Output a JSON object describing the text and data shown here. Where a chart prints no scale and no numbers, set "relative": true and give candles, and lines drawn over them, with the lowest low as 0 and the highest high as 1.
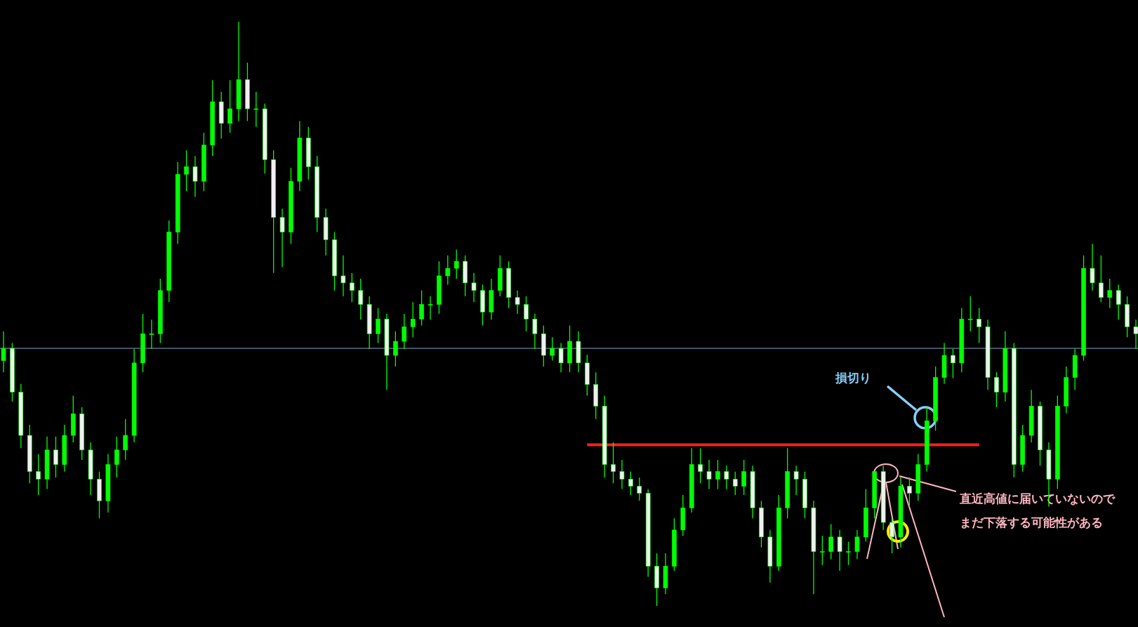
{
  "chart_data": {
    "type": "candlestick",
    "relative": true,
    "color": "#00ff00",
    "categories": [
      null,
      null,
      null,
      null,
      null,
      null,
      null,
      null,
      null,
      null,
      null,
      null,
      null,
      null,
      null,
      null,
      null,
      null,
      null,
      null,
      null,
      null,
      null,
      null,
      null,
      null,
      null,
      null,
      null,
      null,
      null,
      null,
      null,
      null,
      null,
      null,
      null,
      null,
      null,
      null,
      null,
      null,
      null,
      null,
      null,
      null,
      null,
      null,
      null,
      null,
      null,
      null,
      null,
      null,
      null,
      null,
      null,
      null,
      null,
      null,
      null,
      null,
      null,
      null,
      null,
      null,
      null,
      null,
      null,
      null,
      null,
      null,
      null,
      null,
      null,
      null,
      null,
      null,
      null,
      null,
      null,
      null,
      null,
      null,
      null,
      null,
      null,
      null,
      null,
      null,
      null,
      null,
      null,
      null,
      null,
      null,
      null,
      null,
      null,
      null,
      null,
      null,
      null,
      null,
      null,
      null,
      null,
      null,
      null,
      null,
      null,
      null,
      null,
      null,
      null,
      null,
      null,
      null,
      null,
      null,
      null,
      null,
      null,
      null,
      null,
      null,
      null,
      null,
      null,
      null,
      null
    ],
    "ohlc": [
      [
        0.42,
        0.47,
        0.4,
        0.441
      ],
      [
        0.441,
        0.45,
        0.35,
        0.366
      ],
      [
        0.366,
        0.38,
        0.27,
        0.292
      ],
      [
        0.292,
        0.31,
        0.21,
        0.23
      ],
      [
        0.23,
        0.26,
        0.19,
        0.217
      ],
      [
        0.217,
        0.29,
        0.2,
        0.267
      ],
      [
        0.267,
        0.29,
        0.22,
        0.242
      ],
      [
        0.242,
        0.31,
        0.23,
        0.292
      ],
      [
        0.292,
        0.36,
        0.28,
        0.329
      ],
      [
        0.329,
        0.34,
        0.25,
        0.267
      ],
      [
        0.267,
        0.28,
        0.19,
        0.217
      ],
      [
        0.217,
        0.23,
        0.15,
        0.18
      ],
      [
        0.18,
        0.26,
        0.16,
        0.242
      ],
      [
        0.242,
        0.29,
        0.22,
        0.267
      ],
      [
        0.267,
        0.32,
        0.25,
        0.292
      ],
      [
        0.292,
        0.44,
        0.28,
        0.416
      ],
      [
        0.416,
        0.5,
        0.4,
        0.466
      ],
      [
        0.466,
        0.49,
        0.44,
        0.466
      ],
      [
        0.466,
        0.56,
        0.45,
        0.54
      ],
      [
        0.54,
        0.66,
        0.52,
        0.64
      ],
      [
        0.64,
        0.76,
        0.62,
        0.739
      ],
      [
        0.739,
        0.78,
        0.71,
        0.752
      ],
      [
        0.752,
        0.77,
        0.7,
        0.727
      ],
      [
        0.727,
        0.81,
        0.71,
        0.789
      ],
      [
        0.789,
        0.9,
        0.77,
        0.863
      ],
      [
        0.863,
        0.88,
        0.8,
        0.826
      ],
      [
        0.826,
        0.9,
        0.81,
        0.851
      ],
      [
        0.851,
        1.0,
        0.83,
        0.901
      ],
      [
        0.901,
        0.93,
        0.83,
        0.851
      ],
      [
        0.851,
        0.88,
        0.82,
        0.851
      ],
      [
        0.851,
        0.86,
        0.74,
        0.764
      ],
      [
        0.764,
        0.78,
        0.57,
        0.665
      ],
      [
        0.665,
        0.68,
        0.58,
        0.64
      ],
      [
        0.64,
        0.75,
        0.62,
        0.727
      ],
      [
        0.727,
        0.83,
        0.71,
        0.801
      ],
      [
        0.801,
        0.82,
        0.73,
        0.752
      ],
      [
        0.752,
        0.77,
        0.64,
        0.665
      ],
      [
        0.665,
        0.68,
        0.6,
        0.627
      ],
      [
        0.627,
        0.64,
        0.54,
        0.565
      ],
      [
        0.565,
        0.6,
        0.53,
        0.553
      ],
      [
        0.553,
        0.57,
        0.52,
        0.54
      ],
      [
        0.54,
        0.56,
        0.49,
        0.516
      ],
      [
        0.516,
        0.53,
        0.44,
        0.466
      ],
      [
        0.466,
        0.51,
        0.45,
        0.491
      ],
      [
        0.491,
        0.5,
        0.37,
        0.429
      ],
      [
        0.429,
        0.47,
        0.41,
        0.453
      ],
      [
        0.453,
        0.5,
        0.44,
        0.478
      ],
      [
        0.478,
        0.52,
        0.46,
        0.491
      ],
      [
        0.491,
        0.54,
        0.48,
        0.516
      ],
      [
        0.516,
        0.53,
        0.49,
        0.516
      ],
      [
        0.516,
        0.59,
        0.5,
        0.565
      ],
      [
        0.565,
        0.6,
        0.55,
        0.578
      ],
      [
        0.578,
        0.61,
        0.56,
        0.59
      ],
      [
        0.59,
        0.6,
        0.53,
        0.553
      ],
      [
        0.553,
        0.57,
        0.52,
        0.54
      ],
      [
        0.54,
        0.55,
        0.48,
        0.503
      ],
      [
        0.503,
        0.56,
        0.49,
        0.54
      ],
      [
        0.54,
        0.6,
        0.53,
        0.578
      ],
      [
        0.578,
        0.59,
        0.51,
        0.528
      ],
      [
        0.528,
        0.54,
        0.5,
        0.516
      ],
      [
        0.516,
        0.53,
        0.47,
        0.491
      ],
      [
        0.491,
        0.5,
        0.44,
        0.466
      ],
      [
        0.466,
        0.48,
        0.41,
        0.429
      ],
      [
        0.429,
        0.46,
        0.42,
        0.441
      ],
      [
        0.441,
        0.45,
        0.4,
        0.416
      ],
      [
        0.416,
        0.48,
        0.4,
        0.453
      ],
      [
        0.453,
        0.47,
        0.4,
        0.416
      ],
      [
        0.416,
        0.43,
        0.36,
        0.379
      ],
      [
        0.379,
        0.4,
        0.32,
        0.342
      ],
      [
        0.342,
        0.36,
        0.22,
        0.242
      ],
      [
        0.242,
        0.28,
        0.21,
        0.23
      ],
      [
        0.23,
        0.25,
        0.2,
        0.217
      ],
      [
        0.217,
        0.23,
        0.19,
        0.205
      ],
      [
        0.205,
        0.22,
        0.18,
        0.193
      ],
      [
        0.193,
        0.2,
        0.05,
        0.068
      ],
      [
        0.068,
        0.09,
        0.0,
        0.031
      ],
      [
        0.031,
        0.09,
        0.02,
        0.068
      ],
      [
        0.068,
        0.15,
        0.06,
        0.13
      ],
      [
        0.13,
        0.19,
        0.12,
        0.168
      ],
      [
        0.168,
        0.27,
        0.16,
        0.242
      ],
      [
        0.242,
        0.27,
        0.21,
        0.23
      ],
      [
        0.23,
        0.25,
        0.2,
        0.217
      ],
      [
        0.217,
        0.25,
        0.2,
        0.23
      ],
      [
        0.23,
        0.24,
        0.2,
        0.217
      ],
      [
        0.217,
        0.23,
        0.19,
        0.205
      ],
      [
        0.205,
        0.25,
        0.19,
        0.23
      ],
      [
        0.23,
        0.24,
        0.15,
        0.168
      ],
      [
        0.168,
        0.18,
        0.1,
        0.118
      ],
      [
        0.118,
        0.13,
        0.04,
        0.068
      ],
      [
        0.068,
        0.19,
        0.06,
        0.168
      ],
      [
        0.168,
        0.27,
        0.15,
        0.23
      ],
      [
        0.23,
        0.24,
        0.19,
        0.217
      ],
      [
        0.217,
        0.23,
        0.15,
        0.168
      ],
      [
        0.168,
        0.18,
        0.02,
        0.093
      ],
      [
        0.093,
        0.12,
        0.07,
        0.093
      ],
      [
        0.093,
        0.14,
        0.08,
        0.118
      ],
      [
        0.118,
        0.13,
        0.06,
        0.093
      ],
      [
        0.093,
        0.11,
        0.07,
        0.093
      ],
      [
        0.093,
        0.13,
        0.08,
        0.118
      ],
      [
        0.118,
        0.2,
        0.11,
        0.168
      ],
      [
        0.168,
        0.23,
        0.15,
        0.23
      ],
      [
        0.23,
        0.24,
        0.13,
        0.143
      ],
      [
        0.143,
        0.15,
        0.09,
        0.118
      ],
      [
        0.118,
        0.22,
        0.1,
        0.205
      ],
      [
        0.205,
        0.22,
        0.17,
        0.193
      ],
      [
        0.193,
        0.26,
        0.18,
        0.242
      ],
      [
        0.242,
        0.34,
        0.23,
        0.317
      ],
      [
        0.317,
        0.41,
        0.3,
        0.391
      ],
      [
        0.391,
        0.45,
        0.38,
        0.429
      ],
      [
        0.429,
        0.44,
        0.39,
        0.416
      ],
      [
        0.416,
        0.51,
        0.4,
        0.491
      ],
      [
        0.491,
        0.53,
        0.47,
        0.491
      ],
      [
        0.491,
        0.51,
        0.45,
        0.478
      ],
      [
        0.478,
        0.49,
        0.37,
        0.391
      ],
      [
        0.391,
        0.4,
        0.34,
        0.366
      ],
      [
        0.366,
        0.47,
        0.35,
        0.441
      ],
      [
        0.441,
        0.45,
        0.22,
        0.242
      ],
      [
        0.242,
        0.31,
        0.23,
        0.292
      ],
      [
        0.292,
        0.37,
        0.28,
        0.342
      ],
      [
        0.342,
        0.35,
        0.24,
        0.267
      ],
      [
        0.267,
        0.28,
        0.17,
        0.217
      ],
      [
        0.217,
        0.36,
        0.2,
        0.342
      ],
      [
        0.342,
        0.41,
        0.33,
        0.391
      ],
      [
        0.391,
        0.44,
        0.37,
        0.429
      ],
      [
        0.429,
        0.6,
        0.42,
        0.578
      ],
      [
        0.578,
        0.62,
        0.54,
        0.553
      ],
      [
        0.553,
        0.6,
        0.52,
        0.528
      ],
      [
        0.528,
        0.56,
        0.51,
        0.54
      ],
      [
        0.54,
        0.55,
        0.49,
        0.516
      ],
      [
        0.516,
        0.53,
        0.46,
        0.478
      ],
      [
        0.478,
        0.49,
        0.44,
        0.466
      ]
    ],
    "series": [
      {
        "type": "line",
        "color": "#ff2020",
        "values": [
          null,
          null,
          null,
          null,
          null,
          null,
          null,
          null,
          null,
          null,
          null,
          null,
          null,
          null,
          null,
          null,
          null,
          null,
          null,
          null,
          null,
          null,
          null,
          null,
          null,
          null,
          null,
          null,
          null,
          null,
          null,
          null,
          null,
          null,
          null,
          null,
          null,
          null,
          null,
          null,
          null,
          null,
          null,
          null,
          null,
          null,
          null,
          null,
          null,
          null,
          null,
          null,
          null,
          null,
          null,
          null,
          null,
          null,
          null,
          null,
          null,
          null,
          null,
          null,
          null,
          null,
          null,
          0.276,
          0.276,
          0.276,
          0.276,
          0.276,
          0.276,
          0.276,
          0.276,
          0.276,
          0.276,
          0.276,
          0.276,
          0.276,
          0.276,
          0.276,
          0.276,
          0.276,
          0.276,
          0.276,
          0.276,
          0.276,
          0.276,
          0.276,
          0.276,
          0.276,
          0.276,
          0.276,
          0.276,
          0.276,
          0.276,
          0.276,
          0.276,
          0.276,
          0.276,
          0.276,
          0.276,
          0.276,
          0.276,
          0.276,
          0.276,
          0.276,
          0.276,
          0.276,
          0.276,
          0.276,
          0.276,
          null,
          null,
          null,
          null,
          null,
          null,
          null,
          null,
          null,
          null,
          null,
          null,
          null,
          null,
          null,
          null,
          null,
          null
        ]
      }
    ],
    "ref_lines": [
      {
        "axis": "y",
        "value": 0.441,
        "color": "#7fa8cc"
      }
    ],
    "annotations": [
      "損切り",
      "直近高値に届いていないので",
      "まだ下落する可能性がある"
    ]
  }
}
